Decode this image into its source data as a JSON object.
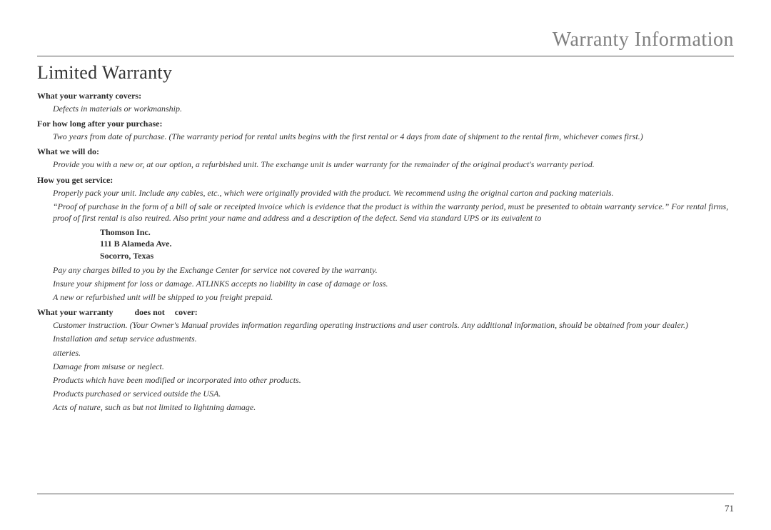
{
  "header": {
    "title": "Warranty Information"
  },
  "section": {
    "title": "Limited Warranty"
  },
  "labels": {
    "covers": "What your warranty covers:",
    "howlong": "For how long after your purchase:",
    "whatwedo": "What we will do:",
    "howservice": "How you get service:",
    "notcover_a": "What your warranty",
    "notcover_b": "does not",
    "notcover_c": "cover:"
  },
  "text": {
    "covers_body": "Defects in materials or workmanship.",
    "howlong_body": "Two years from date of purchase. (The warranty period for rental units begins with the first rental or 4 days from date of shipment to the rental firm, whichever comes first.)",
    "whatwedo_body": "Provide you with a new or, at our option, a refurbished unit. The exchange unit is under warranty for the remainder of the original product's warranty period.",
    "service_1": "Properly pack your unit. Include any cables, etc., which were originally provided with  the product. We recommend using the original carton and packing materials.",
    "service_2": "“Proof of purchase in the form of a bill of sale or receipted invoice which is evidence that the product is within the warranty period, must be presented to obtain warranty service.” For rental firms, proof of first rental is also reuired.  Also print your name and address and a description of the defect. Send via standard UPS or its euivalent to",
    "addr_1": "Thomson Inc.",
    "addr_2": "111 B Alameda Ave.",
    "addr_3": "Socorro, Texas",
    "service_3": "Pay any charges billed to you by the Exchange Center for service not covered by the warranty.",
    "service_4": "Insure your shipment for loss or damage. ATLINKS accepts no liability in case of damage or loss.",
    "service_5": "A new or refurbished unit will be shipped to you freight prepaid.",
    "not_1": "Customer instruction. (Your Owner's Manual provides information regarding operating instructions and user controls. Any additional information, should be obtained from your dealer.)",
    "not_2": "Installation and setup service adustments.",
    "not_3": "atteries.",
    "not_4": "Damage from misuse or neglect.",
    "not_5": "Products which have been modified or incorporated into other products.",
    "not_6": "Products purchased or serviced outside the USA.",
    "not_7": "Acts of nature, such as but not limited to lightning damage."
  },
  "page": {
    "number": "71"
  }
}
